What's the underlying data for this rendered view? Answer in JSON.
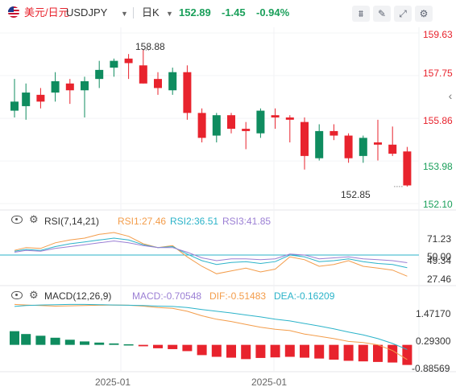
{
  "header": {
    "symbol_cn": "美元/日元",
    "symbol": "USDJPY",
    "period": "日K",
    "price": "152.89",
    "change": "-1.45",
    "change_pct": "-0.94%",
    "buttons": [
      "chart-type-icon",
      "draw-icon",
      "expand-icon",
      "settings-icon"
    ]
  },
  "colors": {
    "up": "#0f8c5f",
    "down": "#e8232d",
    "up_text": "#1a9f5a",
    "rsi1": "#f39c4a",
    "rsi2": "#2bb3c9",
    "rsi3": "#9b7fd4",
    "macd_dif": "#f39c4a",
    "macd_dea": "#2bb3c9",
    "macd_label": "#9b7fd4"
  },
  "main_axis": {
    "labels": [
      "159.63",
      "157.75",
      "155.86",
      "153.98",
      "152.10"
    ],
    "high_label": "158.88",
    "low_label": "152.85"
  },
  "rsi": {
    "title": "RSI(7,14,21)",
    "rsi1": "RSI1:27.46",
    "rsi2": "RSI2:36.51",
    "rsi3": "RSI3:41.85",
    "axis": [
      "71.23",
      "50.00",
      "49.34",
      "27.46"
    ]
  },
  "macd": {
    "title": "MACD(12,26,9)",
    "macd": "MACD:-0.70548",
    "dif": "DIF:-0.51483",
    "dea": "DEA:-0.16209",
    "axis": [
      "1.47170",
      "0.29300",
      "-0.88569"
    ]
  },
  "xaxis": {
    "labels": [
      "2025-01",
      "2025-01"
    ]
  },
  "chart_data": {
    "type": "candlestick",
    "ylim": [
      152.1,
      159.63
    ],
    "candles": [
      {
        "o": 156.6,
        "h": 157.6,
        "l": 155.9,
        "c": 156.2,
        "up": true
      },
      {
        "o": 157.0,
        "h": 157.4,
        "l": 155.8,
        "c": 156.4,
        "up": true
      },
      {
        "o": 156.9,
        "h": 157.2,
        "l": 156.3,
        "c": 156.6,
        "up": false
      },
      {
        "o": 157.0,
        "h": 157.9,
        "l": 156.6,
        "c": 157.5,
        "up": true
      },
      {
        "o": 157.4,
        "h": 157.6,
        "l": 156.5,
        "c": 157.1,
        "up": false
      },
      {
        "o": 157.1,
        "h": 157.7,
        "l": 155.9,
        "c": 157.5,
        "up": true
      },
      {
        "o": 157.6,
        "h": 158.4,
        "l": 157.2,
        "c": 158.0,
        "up": true
      },
      {
        "o": 158.1,
        "h": 158.5,
        "l": 157.7,
        "c": 158.4,
        "up": true
      },
      {
        "o": 158.5,
        "h": 158.7,
        "l": 157.6,
        "c": 158.3,
        "up": false
      },
      {
        "o": 158.2,
        "h": 158.88,
        "l": 157.4,
        "c": 157.4,
        "up": false
      },
      {
        "o": 157.6,
        "h": 157.9,
        "l": 156.9,
        "c": 157.2,
        "up": false
      },
      {
        "o": 157.1,
        "h": 158.1,
        "l": 156.9,
        "c": 157.9,
        "up": true
      },
      {
        "o": 157.9,
        "h": 158.2,
        "l": 155.8,
        "c": 156.1,
        "up": false
      },
      {
        "o": 156.1,
        "h": 156.3,
        "l": 154.8,
        "c": 155.0,
        "up": false
      },
      {
        "o": 155.1,
        "h": 156.1,
        "l": 154.8,
        "c": 156.0,
        "up": true
      },
      {
        "o": 156.0,
        "h": 156.1,
        "l": 155.2,
        "c": 155.4,
        "up": false
      },
      {
        "o": 155.4,
        "h": 155.7,
        "l": 154.5,
        "c": 155.3,
        "up": false
      },
      {
        "o": 155.2,
        "h": 156.3,
        "l": 155.0,
        "c": 156.2,
        "up": true
      },
      {
        "o": 156.0,
        "h": 156.3,
        "l": 155.4,
        "c": 155.9,
        "up": false
      },
      {
        "o": 155.9,
        "h": 156.0,
        "l": 154.8,
        "c": 155.8,
        "up": false
      },
      {
        "o": 155.7,
        "h": 155.9,
        "l": 153.6,
        "c": 154.2,
        "up": false
      },
      {
        "o": 154.1,
        "h": 155.6,
        "l": 154.0,
        "c": 155.3,
        "up": true
      },
      {
        "o": 155.3,
        "h": 155.6,
        "l": 154.9,
        "c": 155.1,
        "up": false
      },
      {
        "o": 155.1,
        "h": 155.2,
        "l": 153.9,
        "c": 154.1,
        "up": false
      },
      {
        "o": 154.2,
        "h": 155.1,
        "l": 153.9,
        "c": 155.0,
        "up": true
      },
      {
        "o": 154.8,
        "h": 155.8,
        "l": 154.0,
        "c": 154.7,
        "up": false
      },
      {
        "o": 154.7,
        "h": 155.5,
        "l": 154.2,
        "c": 154.3,
        "up": false
      },
      {
        "o": 154.4,
        "h": 154.6,
        "l": 152.85,
        "c": 152.9,
        "up": false
      }
    ],
    "rsi_series": {
      "rsi1": [
        55,
        58,
        57,
        63,
        66,
        68,
        72,
        74,
        70,
        62,
        58,
        60,
        48,
        38,
        30,
        33,
        36,
        32,
        35,
        48,
        45,
        38,
        40,
        44,
        38,
        36,
        34,
        27.46
      ],
      "rsi2": [
        54,
        56,
        55,
        59,
        62,
        64,
        66,
        68,
        66,
        61,
        58,
        59,
        51,
        44,
        40,
        42,
        43,
        41,
        43,
        50,
        48,
        43,
        44,
        46,
        43,
        41,
        40,
        36.51
      ],
      "rsi3": [
        53,
        55,
        54,
        57,
        59,
        61,
        63,
        65,
        63,
        60,
        58,
        58,
        53,
        47,
        44,
        46,
        46,
        45,
        46,
        51,
        50,
        46,
        47,
        48,
        46,
        45,
        44,
        41.85
      ]
    },
    "macd_series": {
      "hist": [
        0.48,
        0.38,
        0.32,
        0.25,
        0.18,
        0.12,
        0.08,
        0.05,
        0.02,
        -0.05,
        -0.12,
        -0.15,
        -0.22,
        -0.36,
        -0.42,
        -0.45,
        -0.5,
        -0.46,
        -0.44,
        -0.42,
        -0.45,
        -0.48,
        -0.52,
        -0.56,
        -0.58,
        -0.6,
        -0.62,
        -0.70548
      ],
      "dif": [
        1.42,
        1.4,
        1.38,
        1.36,
        1.37,
        1.38,
        1.39,
        1.4,
        1.39,
        1.36,
        1.31,
        1.28,
        1.18,
        1.02,
        0.9,
        0.82,
        0.72,
        0.62,
        0.55,
        0.5,
        0.38,
        0.3,
        0.22,
        0.12,
        0.08,
        0.0,
        -0.2,
        -0.51483
      ],
      "dea": [
        1.35,
        1.38,
        1.4,
        1.41,
        1.42,
        1.42,
        1.41,
        1.4,
        1.39,
        1.38,
        1.36,
        1.35,
        1.31,
        1.24,
        1.18,
        1.12,
        1.05,
        0.98,
        0.9,
        0.84,
        0.75,
        0.66,
        0.56,
        0.45,
        0.35,
        0.22,
        0.05,
        -0.16209
      ]
    },
    "macd_ylim": [
      -0.88569,
      1.6
    ]
  }
}
